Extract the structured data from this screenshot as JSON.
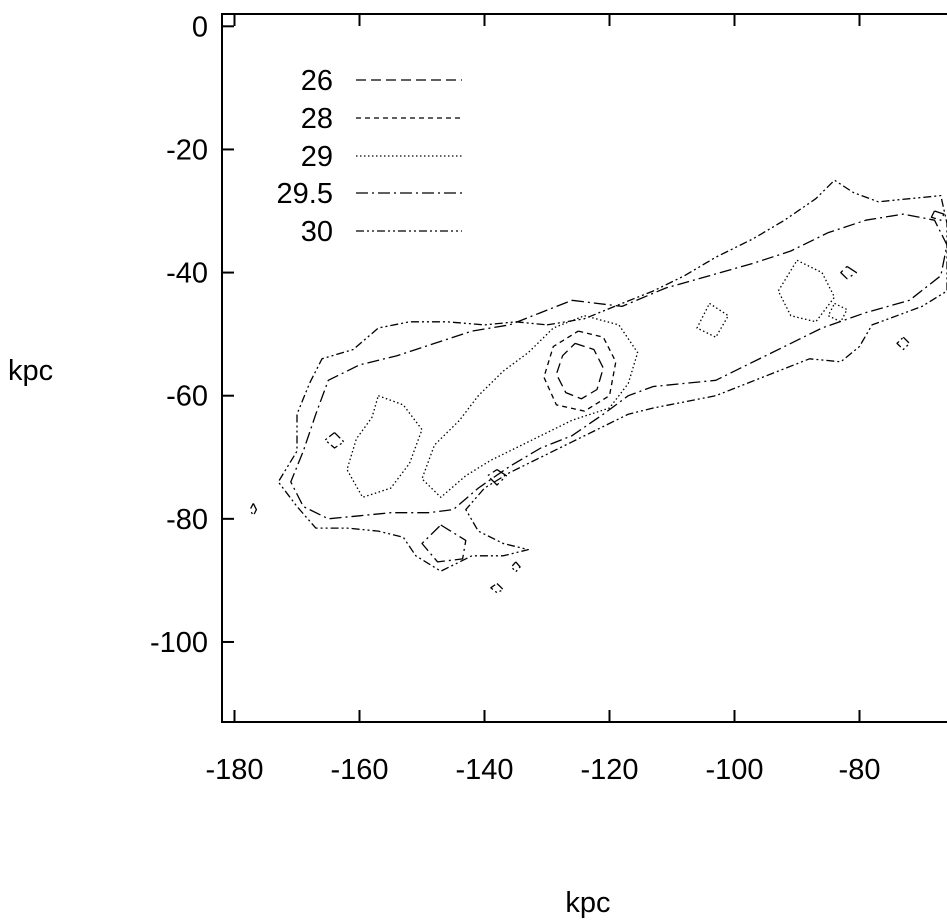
{
  "chart_data": {
    "type": "contour",
    "title": "",
    "xlabel": "kpc",
    "ylabel": "kpc",
    "xlim": [
      -182,
      -66
    ],
    "ylim": [
      -113,
      2
    ],
    "x_ticks": [
      -180,
      -160,
      -140,
      -120,
      -100,
      -80
    ],
    "y_ticks": [
      0,
      -20,
      -40,
      -60,
      -80,
      -100
    ],
    "legend_position": "top-left",
    "series": [
      {
        "name": "26",
        "dash": "long-dash",
        "contours": [
          [
            [
              -125.5,
              -51.5
            ],
            [
              -122.5,
              -52.5
            ],
            [
              -121,
              -55.5
            ],
            [
              -122,
              -59
            ],
            [
              -124.5,
              -60.5
            ],
            [
              -127,
              -59.5
            ],
            [
              -128.5,
              -56.5
            ],
            [
              -127.5,
              -53.5
            ],
            [
              -125.5,
              -51.5
            ]
          ]
        ]
      },
      {
        "name": "28",
        "dash": "short-dash",
        "contours": [
          [
            [
              -125,
              -49.5
            ],
            [
              -121,
              -50.5
            ],
            [
              -119,
              -54.5
            ],
            [
              -120,
              -60
            ],
            [
              -124,
              -62.5
            ],
            [
              -128.5,
              -61.5
            ],
            [
              -130.5,
              -57
            ],
            [
              -129,
              -52
            ],
            [
              -125,
              -49.5
            ]
          ]
        ]
      },
      {
        "name": "29",
        "dash": "dotted",
        "contours": [
          [
            [
              -124,
              -47
            ],
            [
              -118.5,
              -48.5
            ],
            [
              -115.5,
              -53
            ],
            [
              -117,
              -58
            ],
            [
              -120,
              -62
            ],
            [
              -126,
              -64
            ],
            [
              -131,
              -66.5
            ],
            [
              -135,
              -68.5
            ],
            [
              -139,
              -70.5
            ],
            [
              -143,
              -73
            ],
            [
              -147,
              -76.5
            ],
            [
              -150,
              -73.5
            ],
            [
              -148,
              -68
            ],
            [
              -144,
              -64
            ],
            [
              -141,
              -60
            ],
            [
              -137,
              -56
            ],
            [
              -133,
              -53
            ],
            [
              -129,
              -49
            ],
            [
              -124,
              -47
            ]
          ],
          [
            [
              -157,
              -60
            ],
            [
              -153,
              -61.5
            ],
            [
              -150,
              -65.5
            ],
            [
              -152,
              -71
            ],
            [
              -155,
              -75
            ],
            [
              -159.5,
              -76.5
            ],
            [
              -162,
              -72
            ],
            [
              -160.5,
              -67
            ],
            [
              -158,
              -63.5
            ],
            [
              -157,
              -60
            ]
          ],
          [
            [
              -90,
              -38
            ],
            [
              -86,
              -40
            ],
            [
              -84,
              -44
            ],
            [
              -87,
              -48
            ],
            [
              -91,
              -47
            ],
            [
              -93,
              -43
            ],
            [
              -90,
              -38
            ]
          ],
          [
            [
              -104,
              -45
            ],
            [
              -101,
              -47
            ],
            [
              -103,
              -50.5
            ],
            [
              -106,
              -49
            ],
            [
              -104,
              -45
            ]
          ],
          [
            [
              -84,
              -45
            ],
            [
              -82,
              -46
            ],
            [
              -83,
              -48
            ],
            [
              -85,
              -47
            ],
            [
              -84,
              -45
            ]
          ]
        ]
      },
      {
        "name": "29.5",
        "dash": "dash-dot",
        "contours": [
          [
            [
              -126,
              -44.5
            ],
            [
              -118,
              -45.5
            ],
            [
              -111,
              -42.5
            ],
            [
              -104,
              -40.5
            ],
            [
              -97,
              -38.5
            ],
            [
              -91,
              -36.5
            ],
            [
              -85,
              -33.5
            ],
            [
              -79,
              -31.5
            ],
            [
              -73,
              -30.5
            ],
            [
              -68,
              -31.5
            ],
            [
              -66,
              -35.5
            ],
            [
              -67,
              -40.5
            ],
            [
              -72,
              -44.5
            ],
            [
              -79,
              -46.5
            ],
            [
              -86,
              -49
            ],
            [
              -92,
              -52
            ],
            [
              -98,
              -55
            ],
            [
              -103,
              -57.5
            ],
            [
              -108,
              -58
            ],
            [
              -113,
              -58.5
            ],
            [
              -117,
              -60
            ],
            [
              -121,
              -63
            ],
            [
              -126,
              -66.5
            ],
            [
              -131,
              -68.5
            ],
            [
              -136,
              -71.5
            ],
            [
              -141,
              -75
            ],
            [
              -145,
              -78.5
            ],
            [
              -149,
              -79
            ],
            [
              -155,
              -79
            ],
            [
              -160,
              -79.5
            ],
            [
              -165,
              -80
            ],
            [
              -169,
              -78
            ],
            [
              -171,
              -74
            ],
            [
              -169,
              -69
            ],
            [
              -167,
              -63
            ],
            [
              -165,
              -57.5
            ],
            [
              -160,
              -55
            ],
            [
              -154,
              -53.5
            ],
            [
              -148,
              -51.5
            ],
            [
              -142,
              -49.5
            ],
            [
              -136,
              -48.5
            ],
            [
              -131,
              -46.5
            ],
            [
              -126,
              -44.5
            ]
          ],
          [
            [
              -147,
              -81
            ],
            [
              -143,
              -83.5
            ],
            [
              -143.5,
              -86.5
            ],
            [
              -147.5,
              -87
            ],
            [
              -150,
              -84
            ],
            [
              -147,
              -81
            ]
          ],
          [
            [
              -138,
              -72
            ],
            [
              -136.5,
              -73
            ],
            [
              -138,
              -74.5
            ],
            [
              -139.5,
              -73
            ],
            [
              -138,
              -72
            ]
          ],
          [
            [
              -177,
              -77.5
            ],
            [
              -176.5,
              -78.5
            ],
            [
              -177,
              -79.5
            ],
            [
              -177.5,
              -78.5
            ],
            [
              -177,
              -77.5
            ]
          ],
          [
            [
              -82,
              -39
            ],
            [
              -80.5,
              -40
            ],
            [
              -82,
              -41
            ],
            [
              -83,
              -40
            ],
            [
              -82,
              -39
            ]
          ],
          [
            [
              -68,
              -30
            ],
            [
              -66.5,
              -30.5
            ],
            [
              -67,
              -31.5
            ],
            [
              -68.5,
              -31
            ],
            [
              -68,
              -30
            ]
          ]
        ]
      },
      {
        "name": "30",
        "dash": "dash-dot-dot",
        "contours": [
          [
            [
              -130,
              -48.5
            ],
            [
              -124,
              -47.5
            ],
            [
              -118,
              -45
            ],
            [
              -113,
              -43
            ],
            [
              -108,
              -40.5
            ],
            [
              -103,
              -37.5
            ],
            [
              -97,
              -34.5
            ],
            [
              -92,
              -31.5
            ],
            [
              -87,
              -28
            ],
            [
              -84,
              -25
            ],
            [
              -81,
              -27
            ],
            [
              -77,
              -28.5
            ],
            [
              -72,
              -28
            ],
            [
              -67,
              -27.5
            ],
            [
              -66,
              -32
            ],
            [
              -66,
              -38
            ],
            [
              -66,
              -43
            ],
            [
              -70,
              -45.5
            ],
            [
              -74,
              -47
            ],
            [
              -78,
              -48.5
            ],
            [
              -80,
              -52
            ],
            [
              -83,
              -54.5
            ],
            [
              -88,
              -54
            ],
            [
              -93,
              -56
            ],
            [
              -98,
              -58
            ],
            [
              -103,
              -60
            ],
            [
              -108,
              -61
            ],
            [
              -113,
              -62
            ],
            [
              -117,
              -63
            ],
            [
              -121,
              -65
            ],
            [
              -126,
              -67.5
            ],
            [
              -131,
              -70
            ],
            [
              -136,
              -72.5
            ],
            [
              -140,
              -75
            ],
            [
              -143,
              -78.5
            ],
            [
              -141,
              -82
            ],
            [
              -137,
              -84
            ],
            [
              -133,
              -85
            ],
            [
              -137,
              -86
            ],
            [
              -142,
              -86
            ],
            [
              -147,
              -88.5
            ],
            [
              -151,
              -86
            ],
            [
              -153,
              -83
            ],
            [
              -157,
              -82
            ],
            [
              -162,
              -81.5
            ],
            [
              -167,
              -81.5
            ],
            [
              -170,
              -78
            ],
            [
              -173,
              -74
            ],
            [
              -170,
              -69
            ],
            [
              -170,
              -63
            ],
            [
              -168,
              -58
            ],
            [
              -166,
              -54
            ],
            [
              -161,
              -52.5
            ],
            [
              -157,
              -49
            ],
            [
              -152,
              -48
            ],
            [
              -146,
              -48
            ],
            [
              -140,
              -48.5
            ],
            [
              -135,
              -48
            ],
            [
              -130,
              -48.5
            ]
          ],
          [
            [
              -138,
              -90.5
            ],
            [
              -137,
              -91.5
            ],
            [
              -138,
              -92
            ],
            [
              -139,
              -91.2
            ],
            [
              -138,
              -90.5
            ]
          ],
          [
            [
              -135,
              -87
            ],
            [
              -134.3,
              -87.8
            ],
            [
              -135,
              -88.6
            ],
            [
              -135.7,
              -87.8
            ],
            [
              -135,
              -87
            ]
          ],
          [
            [
              -73,
              -50.5
            ],
            [
              -72,
              -51.5
            ],
            [
              -73,
              -52.5
            ],
            [
              -74,
              -51.5
            ],
            [
              -73,
              -50.5
            ]
          ],
          [
            [
              -164,
              -66
            ],
            [
              -162.5,
              -67.5
            ],
            [
              -164,
              -68.5
            ],
            [
              -165.5,
              -67.2
            ],
            [
              -164,
              -66
            ]
          ]
        ]
      }
    ]
  }
}
